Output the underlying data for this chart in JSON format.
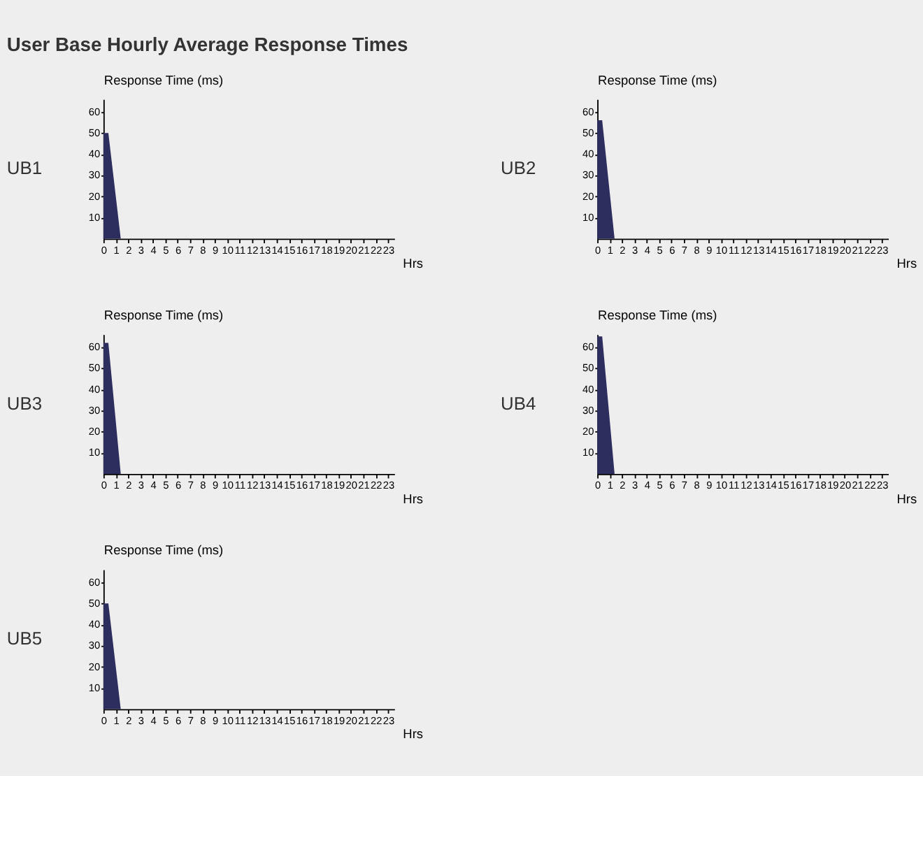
{
  "chart_data": [
    {
      "type": "area",
      "title": "UB1",
      "annotations": [
        "User Base Hourly Average Response Times"
      ],
      "xlabel": "Hrs",
      "ylabel": "Response Time (ms)",
      "x": [
        0,
        0.4,
        1.4
      ],
      "series": [
        {
          "color": "#2e2e5e",
          "values": [
            50,
            50,
            0
          ]
        }
      ],
      "xlim": [
        0,
        23.5
      ],
      "xticks": [
        0,
        1,
        2,
        3,
        4,
        5,
        6,
        7,
        8,
        9,
        10,
        11,
        12,
        13,
        14,
        15,
        16,
        17,
        18,
        19,
        20,
        21,
        22,
        23
      ],
      "ylim": [
        0,
        66
      ],
      "yticks": [
        10,
        20,
        30,
        40,
        50,
        60
      ],
      "grid": false
    },
    {
      "type": "area",
      "title": "UB2",
      "xlabel": "Hrs",
      "ylabel": "Response Time (ms)",
      "x": [
        0,
        0.4,
        1.4
      ],
      "series": [
        {
          "color": "#2e2e5e",
          "values": [
            56,
            56,
            0
          ]
        }
      ],
      "xlim": [
        0,
        23.5
      ],
      "xticks": [
        0,
        1,
        2,
        3,
        4,
        5,
        6,
        7,
        8,
        9,
        10,
        11,
        12,
        13,
        14,
        15,
        16,
        17,
        18,
        19,
        20,
        21,
        22,
        23
      ],
      "ylim": [
        0,
        66
      ],
      "yticks": [
        10,
        20,
        30,
        40,
        50,
        60
      ],
      "grid": false
    },
    {
      "type": "area",
      "title": "UB3",
      "xlabel": "Hrs",
      "ylabel": "Response Time (ms)",
      "x": [
        0,
        0.4,
        1.4
      ],
      "series": [
        {
          "color": "#2e2e5e",
          "values": [
            62,
            62,
            0
          ]
        }
      ],
      "xlim": [
        0,
        23.5
      ],
      "xticks": [
        0,
        1,
        2,
        3,
        4,
        5,
        6,
        7,
        8,
        9,
        10,
        11,
        12,
        13,
        14,
        15,
        16,
        17,
        18,
        19,
        20,
        21,
        22,
        23
      ],
      "ylim": [
        0,
        66
      ],
      "yticks": [
        10,
        20,
        30,
        40,
        50,
        60
      ],
      "grid": false
    },
    {
      "type": "area",
      "title": "UB4",
      "xlabel": "Hrs",
      "ylabel": "Response Time (ms)",
      "x": [
        0,
        0.4,
        1.4
      ],
      "series": [
        {
          "color": "#2e2e5e",
          "values": [
            65,
            65,
            0
          ]
        }
      ],
      "xlim": [
        0,
        23.5
      ],
      "xticks": [
        0,
        1,
        2,
        3,
        4,
        5,
        6,
        7,
        8,
        9,
        10,
        11,
        12,
        13,
        14,
        15,
        16,
        17,
        18,
        19,
        20,
        21,
        22,
        23
      ],
      "ylim": [
        0,
        66
      ],
      "yticks": [
        10,
        20,
        30,
        40,
        50,
        60
      ],
      "grid": false
    },
    {
      "type": "area",
      "title": "UB5",
      "xlabel": "Hrs",
      "ylabel": "Response Time (ms)",
      "x": [
        0,
        0.4,
        1.4
      ],
      "series": [
        {
          "color": "#2e2e5e",
          "values": [
            50,
            50,
            0
          ]
        }
      ],
      "xlim": [
        0,
        23.5
      ],
      "xticks": [
        0,
        1,
        2,
        3,
        4,
        5,
        6,
        7,
        8,
        9,
        10,
        11,
        12,
        13,
        14,
        15,
        16,
        17,
        18,
        19,
        20,
        21,
        22,
        23
      ],
      "ylim": [
        0,
        66
      ],
      "yticks": [
        10,
        20,
        30,
        40,
        50,
        60
      ],
      "grid": false
    }
  ]
}
